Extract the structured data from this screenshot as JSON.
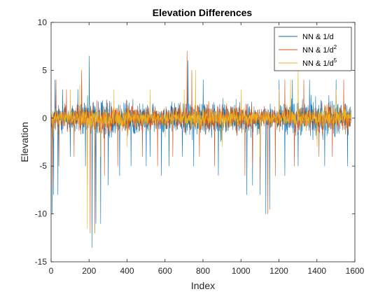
{
  "chart_data": {
    "type": "line",
    "title": "Elevation Differences",
    "xlabel": "Index",
    "ylabel": "Elevation",
    "xlim": [
      0,
      1600
    ],
    "ylim": [
      -15,
      10
    ],
    "xticks": [
      0,
      200,
      400,
      600,
      800,
      1000,
      1200,
      1400,
      1600
    ],
    "yticks": [
      -15,
      -10,
      -5,
      0,
      5,
      10
    ],
    "grid": false,
    "legend_position": "top-right",
    "n_points": 1580,
    "series": [
      {
        "name": "NN & 1/d",
        "name_sup": "",
        "color": "#0072BD",
        "amplitude": 2.4,
        "spikes": [
          [
            5,
            -10
          ],
          [
            12,
            -8
          ],
          [
            20,
            4
          ],
          [
            35,
            -8
          ],
          [
            60,
            3
          ],
          [
            100,
            -4
          ],
          [
            140,
            3
          ],
          [
            160,
            4.5
          ],
          [
            180,
            -5
          ],
          [
            200,
            6.5
          ],
          [
            215,
            -13.5
          ],
          [
            235,
            -11
          ],
          [
            260,
            -11
          ],
          [
            300,
            -7
          ],
          [
            360,
            -6
          ],
          [
            420,
            -5
          ],
          [
            500,
            -5
          ],
          [
            520,
            -4
          ],
          [
            580,
            -6
          ],
          [
            620,
            -5
          ],
          [
            690,
            -4
          ],
          [
            720,
            6
          ],
          [
            750,
            -5
          ],
          [
            800,
            4
          ],
          [
            880,
            -6
          ],
          [
            1030,
            -8
          ],
          [
            1060,
            -7
          ],
          [
            1100,
            -8
          ],
          [
            1130,
            -10
          ],
          [
            1150,
            -9.5
          ],
          [
            1200,
            4
          ],
          [
            1230,
            -6
          ],
          [
            1270,
            4
          ],
          [
            1300,
            -5
          ],
          [
            1360,
            4
          ],
          [
            1440,
            -5
          ],
          [
            1500,
            4
          ],
          [
            1560,
            -5
          ]
        ]
      },
      {
        "name": "NN & 1/d",
        "name_sup": "2",
        "color": "#D95319",
        "amplitude": 1.9,
        "spikes": [
          [
            5,
            -7
          ],
          [
            25,
            4
          ],
          [
            40,
            -5
          ],
          [
            80,
            3
          ],
          [
            120,
            -4
          ],
          [
            160,
            5
          ],
          [
            190,
            -7
          ],
          [
            205,
            -12
          ],
          [
            230,
            -12
          ],
          [
            280,
            -6
          ],
          [
            350,
            -5
          ],
          [
            480,
            -4
          ],
          [
            560,
            -5
          ],
          [
            640,
            -4
          ],
          [
            715,
            7
          ],
          [
            740,
            5
          ],
          [
            780,
            -4
          ],
          [
            860,
            -5
          ],
          [
            1020,
            -6
          ],
          [
            1060,
            -5
          ],
          [
            1100,
            -7
          ],
          [
            1140,
            -10
          ],
          [
            1180,
            -6
          ],
          [
            1230,
            4
          ],
          [
            1280,
            -5
          ],
          [
            1330,
            4
          ],
          [
            1410,
            -4
          ],
          [
            1480,
            -4
          ],
          [
            1540,
            4
          ]
        ]
      },
      {
        "name": "NN & 1/d",
        "name_sup": "5",
        "color": "#EDB120",
        "amplitude": 1.3,
        "spikes": [
          [
            10,
            -2
          ],
          [
            100,
            3
          ],
          [
            150,
            3.5
          ],
          [
            190,
            -11.5
          ],
          [
            260,
            -4
          ],
          [
            330,
            3
          ],
          [
            400,
            -3
          ],
          [
            520,
            3
          ],
          [
            600,
            -2
          ],
          [
            700,
            3
          ],
          [
            760,
            5
          ],
          [
            900,
            -3
          ],
          [
            1000,
            3
          ],
          [
            1100,
            -4
          ],
          [
            1200,
            3
          ],
          [
            1260,
            4
          ],
          [
            1300,
            5.5
          ],
          [
            1400,
            -3
          ],
          [
            1500,
            3
          ]
        ]
      }
    ]
  }
}
